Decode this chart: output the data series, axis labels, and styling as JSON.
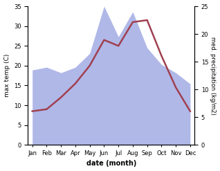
{
  "months": [
    "Jan",
    "Feb",
    "Mar",
    "Apr",
    "May",
    "Jun",
    "Jul",
    "Aug",
    "Sep",
    "Oct",
    "Nov",
    "Dec"
  ],
  "temp_max": [
    8.5,
    9.0,
    12.0,
    15.5,
    20.0,
    26.5,
    25.0,
    31.0,
    31.5,
    22.5,
    14.5,
    8.5
  ],
  "precipitation": [
    13.5,
    14.0,
    13.0,
    14.0,
    16.5,
    25.0,
    19.5,
    24.0,
    17.5,
    14.5,
    13.0,
    11.0
  ],
  "temp_color": "#a04050",
  "precip_fill_color": "#b0b8e8",
  "temp_ylim": [
    0,
    35
  ],
  "precip_ylim": [
    0,
    25
  ],
  "temp_yticks": [
    0,
    5,
    10,
    15,
    20,
    25,
    30,
    35
  ],
  "precip_yticks": [
    0,
    5,
    10,
    15,
    20,
    25
  ],
  "xlabel": "date (month)",
  "ylabel_left": "max temp (C)",
  "ylabel_right": "med. precipitation (kg/m2)",
  "scale_factor": 1.4,
  "fig_width": 3.18,
  "fig_height": 2.47,
  "dpi": 100
}
